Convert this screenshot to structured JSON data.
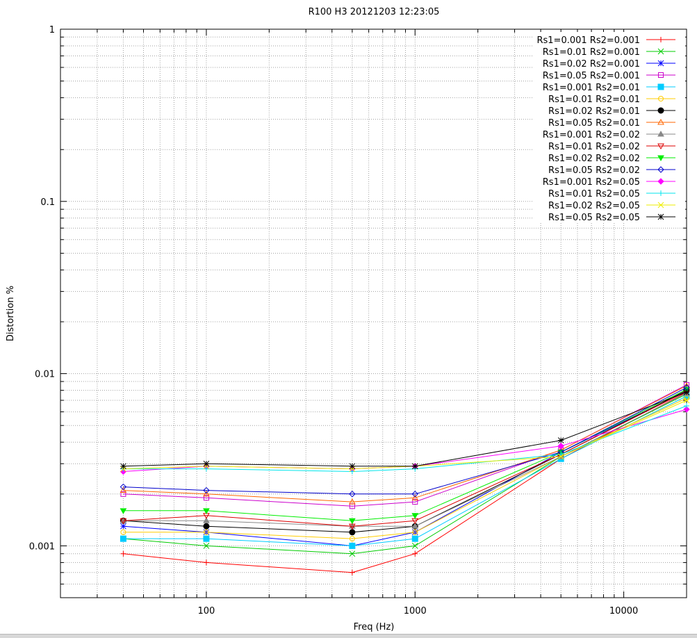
{
  "chart_data": {
    "type": "line",
    "title": "R100 H3 20121203 12:23:05",
    "xlabel": "Freq (Hz)",
    "ylabel": "Distortion %",
    "xscale": "log",
    "yscale": "log",
    "xlim": [
      20,
      20000
    ],
    "ylim": [
      0.0005,
      1
    ],
    "grid": true,
    "legend_position": "top-right",
    "x_ticks": [
      {
        "value": 100,
        "label": "100"
      },
      {
        "value": 1000,
        "label": "1000"
      },
      {
        "value": 10000,
        "label": "10000"
      }
    ],
    "y_ticks": [
      {
        "value": 0.001,
        "label": "0.001"
      },
      {
        "value": 0.01,
        "label": "0.01"
      },
      {
        "value": 0.1,
        "label": "0.1"
      },
      {
        "value": 1,
        "label": "1"
      }
    ],
    "x": [
      40,
      100,
      500,
      1000,
      5000,
      20000
    ],
    "series": [
      {
        "name": "Rs1=0.001 Rs2=0.001",
        "color": "#ff0000",
        "marker": "plus",
        "values": [
          0.0009,
          0.0008,
          0.0007,
          0.0009,
          0.0032,
          0.0078
        ]
      },
      {
        "name": "Rs1=0.01 Rs2=0.001",
        "color": "#00cc00",
        "marker": "cross",
        "values": [
          0.0011,
          0.001,
          0.0009,
          0.001,
          0.0033,
          0.0076
        ]
      },
      {
        "name": "Rs1=0.02 Rs2=0.001",
        "color": "#0000ff",
        "marker": "star",
        "values": [
          0.0013,
          0.0012,
          0.001,
          0.0012,
          0.0035,
          0.0079
        ]
      },
      {
        "name": "Rs1=0.05 Rs2=0.001",
        "color": "#cc00cc",
        "marker": "square",
        "values": [
          0.002,
          0.0019,
          0.0017,
          0.0018,
          0.0036,
          0.0086
        ]
      },
      {
        "name": "Rs1=0.001 Rs2=0.01",
        "color": "#00ccff",
        "marker": "filled-square",
        "values": [
          0.0011,
          0.0011,
          0.001,
          0.0011,
          0.0032,
          0.0074
        ]
      },
      {
        "name": "Rs1=0.01 Rs2=0.01",
        "color": "#ffcc00",
        "marker": "circle",
        "values": [
          0.0012,
          0.0012,
          0.0011,
          0.0012,
          0.0033,
          0.0072
        ]
      },
      {
        "name": "Rs1=0.02 Rs2=0.01",
        "color": "#000000",
        "marker": "filled-circle",
        "values": [
          0.0014,
          0.0013,
          0.0012,
          0.0013,
          0.0034,
          0.008
        ]
      },
      {
        "name": "Rs1=0.05 Rs2=0.01",
        "color": "#ff6600",
        "marker": "triangle",
        "values": [
          0.0021,
          0.002,
          0.0018,
          0.0019,
          0.0036,
          0.0085
        ]
      },
      {
        "name": "Rs1=0.001 Rs2=0.02",
        "color": "#888888",
        "marker": "filled-triangle",
        "values": [
          0.0014,
          0.0014,
          0.0013,
          0.0013,
          0.0033,
          0.0077
        ]
      },
      {
        "name": "Rs1=0.01 Rs2=0.02",
        "color": "#dd0000",
        "marker": "inv-triangle",
        "values": [
          0.0014,
          0.0015,
          0.0013,
          0.0014,
          0.0034,
          0.0079
        ]
      },
      {
        "name": "Rs1=0.02 Rs2=0.02",
        "color": "#00ee00",
        "marker": "filled-inv-triangle",
        "values": [
          0.0016,
          0.0016,
          0.0014,
          0.0015,
          0.0035,
          0.0081
        ]
      },
      {
        "name": "Rs1=0.05 Rs2=0.02",
        "color": "#0000cc",
        "marker": "diamond",
        "values": [
          0.0022,
          0.0021,
          0.002,
          0.002,
          0.0035,
          0.0083
        ]
      },
      {
        "name": "Rs1=0.001 Rs2=0.05",
        "color": "#ff00ff",
        "marker": "filled-diamond",
        "values": [
          0.0027,
          0.0029,
          0.0028,
          0.0029,
          0.0038,
          0.0062
        ]
      },
      {
        "name": "Rs1=0.01 Rs2=0.05",
        "color": "#00e5ee",
        "marker": "plus",
        "values": [
          0.0028,
          0.0028,
          0.0027,
          0.0028,
          0.0034,
          0.0065
        ]
      },
      {
        "name": "Rs1=0.02 Rs2=0.05",
        "color": "#eeee00",
        "marker": "cross",
        "values": [
          0.0028,
          0.0029,
          0.0028,
          0.0029,
          0.0033,
          0.007
        ]
      },
      {
        "name": "Rs1=0.05 Rs2=0.05",
        "color": "#000000",
        "marker": "star",
        "values": [
          0.0029,
          0.003,
          0.0029,
          0.0029,
          0.0041,
          0.0078
        ]
      }
    ]
  }
}
